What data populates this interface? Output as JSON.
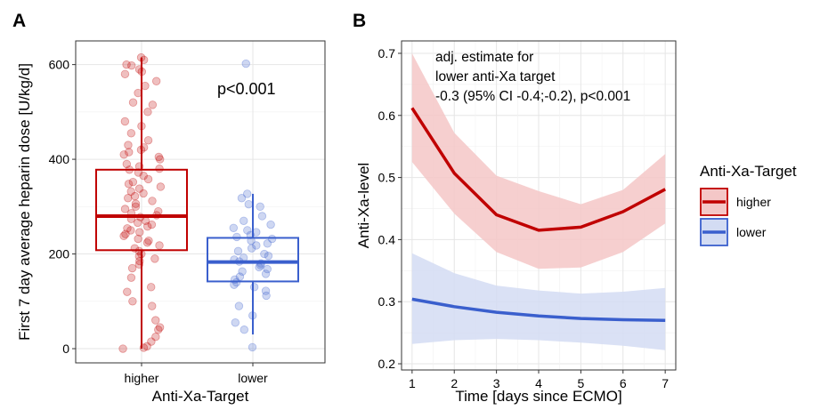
{
  "chart_data": [
    {
      "type": "box",
      "panel_label": "A",
      "title": "",
      "xlabel": "Anti-Xa-Target",
      "ylabel": "First 7 day average heparin dose  [U/kg/d]",
      "ylim": [
        -30,
        650
      ],
      "yticks": [
        0,
        200,
        400,
        600
      ],
      "grid": true,
      "annotation": "p<0.001",
      "categories": [
        "higher",
        "lower"
      ],
      "boxes": [
        {
          "category": "higher",
          "color": "#c00000",
          "min": 0,
          "q1": 208,
          "median": 280,
          "q3": 378,
          "max": 615
        },
        {
          "category": "lower",
          "color": "#3a5fcd",
          "min": 30,
          "q1": 142,
          "median": 183,
          "q3": 234,
          "max": 327
        }
      ],
      "points": {
        "higher": [
          615,
          610,
          600,
          598,
          590,
          585,
          580,
          565,
          555,
          540,
          520,
          515,
          500,
          480,
          470,
          455,
          440,
          430,
          425,
          420,
          415,
          410,
          405,
          400,
          390,
          385,
          380,
          378,
          372,
          365,
          358,
          352,
          348,
          342,
          338,
          332,
          328,
          322,
          318,
          312,
          306,
          300,
          295,
          290,
          286,
          282,
          278,
          274,
          270,
          266,
          262,
          258,
          254,
          250,
          246,
          242,
          238,
          232,
          228,
          224,
          218,
          212,
          206,
          200,
          195,
          190,
          185,
          178,
          170,
          150,
          130,
          120,
          100,
          90,
          60,
          45,
          40,
          25,
          15,
          5,
          2,
          0
        ],
        "lower": [
          602,
          327,
          318,
          305,
          300,
          280,
          270,
          262,
          255,
          250,
          246,
          240,
          236,
          232,
          228,
          222,
          218,
          212,
          206,
          200,
          196,
          192,
          188,
          184,
          180,
          176,
          172,
          168,
          163,
          158,
          152,
          146,
          140,
          135,
          130,
          122,
          112,
          90,
          70,
          55,
          40,
          3
        ]
      }
    },
    {
      "type": "line",
      "panel_label": "B",
      "title": "",
      "xlabel": "Time [days since ECMO]",
      "ylabel": "Anti-Xa-level",
      "xlim": [
        0.75,
        7.25
      ],
      "ylim": [
        0.19,
        0.72
      ],
      "xticks": [
        1,
        2,
        3,
        4,
        5,
        6,
        7
      ],
      "yticks": [
        0.2,
        0.3,
        0.4,
        0.5,
        0.6,
        0.7
      ],
      "grid": true,
      "annotation_lines": [
        "adj. estimate for",
        "lower anti-Xa target",
        "-0.3 (95% CI -0.4;-0.2), p<0.001"
      ],
      "legend_title": "Anti-Xa-Target",
      "legend_position": "right",
      "x": [
        1,
        2,
        3,
        4,
        5,
        6,
        7
      ],
      "series": [
        {
          "name": "higher",
          "color": "#c00000",
          "band_color": "#f4c7c7",
          "values": [
            0.612,
            0.507,
            0.44,
            0.415,
            0.42,
            0.445,
            0.481
          ],
          "lower": [
            0.525,
            0.442,
            0.38,
            0.353,
            0.355,
            0.38,
            0.426
          ],
          "upper": [
            0.7,
            0.572,
            0.503,
            0.478,
            0.457,
            0.48,
            0.538
          ]
        },
        {
          "name": "lower",
          "color": "#3a5fcd",
          "band_color": "#d3dcf3",
          "values": [
            0.304,
            0.292,
            0.283,
            0.277,
            0.273,
            0.271,
            0.27
          ],
          "lower": [
            0.232,
            0.238,
            0.24,
            0.238,
            0.234,
            0.229,
            0.222
          ],
          "upper": [
            0.378,
            0.346,
            0.326,
            0.318,
            0.313,
            0.316,
            0.322
          ]
        }
      ]
    }
  ]
}
